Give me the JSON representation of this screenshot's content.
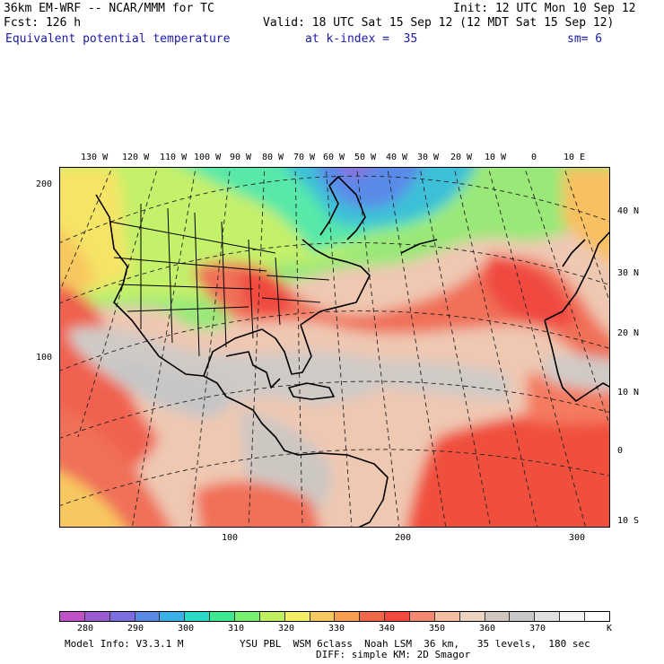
{
  "header": {
    "model_line": "36km EM-WRF -- NCAR/MMM for TC",
    "init_line": "Init: 12 UTC Mon 10 Sep 12",
    "fcst_line": "Fcst: 126 h",
    "valid_line": "Valid: 18 UTC Sat 15 Sep 12 (12 MDT Sat 15 Sep 12)",
    "field_name": "Equivalent potential temperature",
    "level_text": "at k-index =  35",
    "smoothing_text": "sm= 6"
  },
  "map": {
    "longitude_labels": [
      "130 W",
      "120 W",
      "110 W",
      "100 W",
      "90 W",
      "80 W",
      "70 W",
      "60 W",
      "50 W",
      "40 W",
      "30 W",
      "20 W",
      "10 W",
      "0",
      "10 E"
    ],
    "latitude_labels": [
      "40 N",
      "30 N",
      "20 N",
      "10 N",
      "0",
      "10 S"
    ],
    "grid_y_labels": [
      "200",
      "100"
    ],
    "grid_x_labels": [
      "100",
      "200",
      "300"
    ]
  },
  "colorbar": {
    "colors": [
      "#c050c8",
      "#9a5cd0",
      "#7a6ee0",
      "#5a8ae8",
      "#3ab0e8",
      "#2ed8c8",
      "#3ee890",
      "#78f070",
      "#c0f060",
      "#f4ee66",
      "#f8c860",
      "#f8a050",
      "#f06848",
      "#f04a40",
      "#f48870",
      "#f4c0a4",
      "#ead4c0",
      "#d2c6be",
      "#c8c8c8",
      "#e0e0e0",
      "#f4f4f4",
      "#ffffff"
    ],
    "labels": [
      "280",
      "290",
      "300",
      "310",
      "320",
      "330",
      "340",
      "350",
      "360",
      "370"
    ],
    "unit": "K"
  },
  "footer": {
    "model_info": "Model Info: V3.3.1 M",
    "physics": "YSU PBL  WSM 6class  Noah LSM  36 km,   35 levels,  180 sec",
    "diffusion": "DIFF: simple KM: 2D Smagor"
  }
}
